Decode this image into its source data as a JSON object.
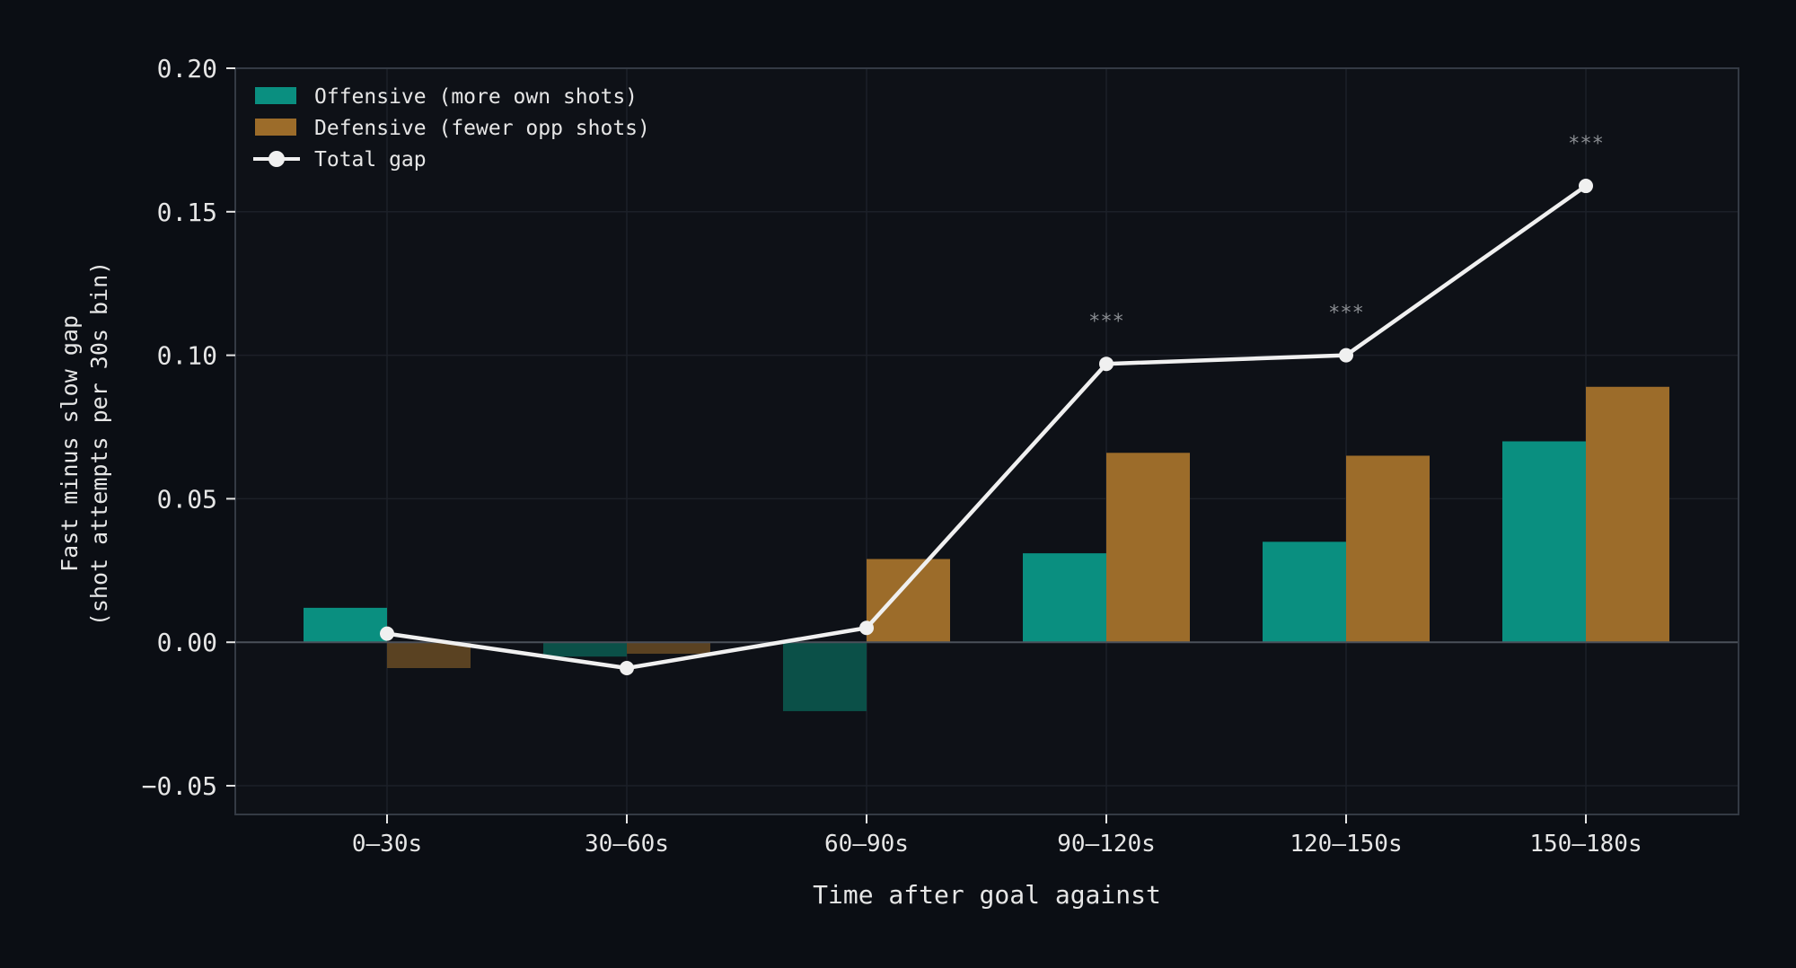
{
  "chart_data": {
    "type": "bar",
    "categories": [
      "0–30s",
      "30–60s",
      "60–90s",
      "90–120s",
      "120–150s",
      "150–180s"
    ],
    "series": [
      {
        "name": "Offensive (more own shots)",
        "kind": "bar",
        "color": "#0a8f80",
        "values": [
          0.012,
          -0.005,
          -0.024,
          0.031,
          0.035,
          0.07
        ]
      },
      {
        "name": "Defensive (fewer opp shots)",
        "kind": "bar",
        "color": "#9c6c2a",
        "values": [
          -0.009,
          -0.004,
          0.029,
          0.066,
          0.065,
          0.089
        ]
      },
      {
        "name": "Total gap",
        "kind": "line",
        "color": "#f0f0f0",
        "values": [
          0.003,
          -0.009,
          0.005,
          0.097,
          0.1,
          0.159
        ]
      }
    ],
    "significance": [
      "",
      "",
      "",
      "***",
      "***",
      "***"
    ],
    "ylim": [
      -0.06,
      0.2
    ],
    "yticks": [
      "0.20",
      "0.15",
      "0.10",
      "0.05",
      "0.00",
      "−0.05"
    ],
    "ytick_values": [
      0.2,
      0.15,
      0.1,
      0.05,
      0.0,
      -0.05
    ],
    "xlabel": "Time after goal against",
    "ylabel_line1": "Fast minus slow gap",
    "ylabel_line2": "(shot attempts per 30s bin)",
    "legend_position": "top-left",
    "grid": true,
    "colors": {
      "background": "#0b0e14",
      "plot_background": "#0e1117",
      "frame": "#343a44",
      "grid": "#1c2028",
      "zero_line": "#4a505a",
      "negative_offensive": "#0b5048",
      "negative_defensive": "#5a4222"
    }
  }
}
